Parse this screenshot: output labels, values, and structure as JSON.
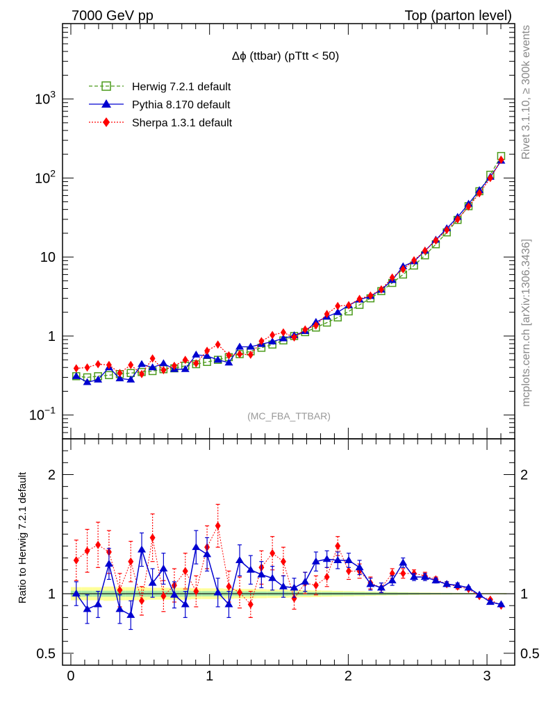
{
  "header": {
    "left": "7000 GeV pp",
    "right": "Top (parton level)"
  },
  "side": {
    "rivet": "Rivet 3.1.10, ≥ 300k events",
    "mcplots": "mcplots.cern.ch [arXiv:1306.3436]"
  },
  "chart_data": [
    {
      "type": "line",
      "panel": "main",
      "title": "Δϕ (ttbar) (pTtt < 50)",
      "watermark": "(MC_FBA_TTBAR)",
      "xlim": [
        -0.06,
        3.2
      ],
      "ylim": [
        0.05,
        9000
      ],
      "yscale": "log",
      "yticks": [
        {
          "v": 0.1,
          "base": "10",
          "exp": "−1"
        },
        {
          "v": 1,
          "label": "1"
        },
        {
          "v": 10,
          "label": "10"
        },
        {
          "v": 100,
          "base": "10",
          "exp": "2"
        },
        {
          "v": 1000,
          "base": "10",
          "exp": "3"
        }
      ],
      "legend_position": "top-left",
      "series": [
        {
          "name": "Herwig 7.2.1 default",
          "color": "#4a9a1a",
          "line": "dashed",
          "marker": "open-square",
          "x": [
            0.039,
            0.118,
            0.196,
            0.275,
            0.353,
            0.432,
            0.511,
            0.589,
            0.668,
            0.746,
            0.825,
            0.903,
            0.982,
            1.06,
            1.139,
            1.217,
            1.296,
            1.374,
            1.453,
            1.532,
            1.61,
            1.689,
            1.767,
            1.846,
            1.924,
            2.003,
            2.081,
            2.16,
            2.238,
            2.317,
            2.395,
            2.474,
            2.553,
            2.631,
            2.71,
            2.788,
            2.867,
            2.945,
            3.024,
            3.102
          ],
          "y": [
            0.31,
            0.3,
            0.31,
            0.32,
            0.33,
            0.34,
            0.35,
            0.36,
            0.38,
            0.39,
            0.42,
            0.44,
            0.47,
            0.5,
            0.54,
            0.59,
            0.64,
            0.71,
            0.78,
            0.88,
            1.0,
            1.12,
            1.28,
            1.48,
            1.72,
            2.05,
            2.48,
            3.0,
            3.7,
            4.7,
            6.0,
            7.8,
            10.5,
            14.5,
            20.5,
            29.5,
            44,
            68,
            110,
            190
          ]
        },
        {
          "name": "Pythia 8.170 default",
          "color": "#0000d0",
          "line": "solid",
          "marker": "filled-triangle",
          "x": [
            0.039,
            0.118,
            0.196,
            0.275,
            0.353,
            0.432,
            0.511,
            0.589,
            0.668,
            0.746,
            0.825,
            0.903,
            0.982,
            1.06,
            1.139,
            1.217,
            1.296,
            1.374,
            1.453,
            1.532,
            1.61,
            1.689,
            1.767,
            1.846,
            1.924,
            2.003,
            2.081,
            2.16,
            2.238,
            2.317,
            2.395,
            2.474,
            2.553,
            2.631,
            2.71,
            2.788,
            2.867,
            2.945,
            3.024,
            3.102
          ],
          "y": [
            0.31,
            0.26,
            0.28,
            0.4,
            0.29,
            0.28,
            0.44,
            0.4,
            0.45,
            0.38,
            0.38,
            0.58,
            0.56,
            0.5,
            0.46,
            0.73,
            0.73,
            0.79,
            0.85,
            0.93,
            1.02,
            1.15,
            1.5,
            1.75,
            2.0,
            2.45,
            2.88,
            3.2,
            3.85,
            5.1,
            7.6,
            8.8,
            12.0,
            16.5,
            23.0,
            32.0,
            47,
            70,
            103,
            165
          ]
        },
        {
          "name": "Sherpa 1.3.1 default",
          "color": "#ff0000",
          "line": "dotted",
          "marker": "filled-diamond",
          "x": [
            0.039,
            0.118,
            0.196,
            0.275,
            0.353,
            0.432,
            0.511,
            0.589,
            0.668,
            0.746,
            0.825,
            0.903,
            0.982,
            1.06,
            1.139,
            1.217,
            1.296,
            1.374,
            1.453,
            1.532,
            1.61,
            1.689,
            1.767,
            1.846,
            1.924,
            2.003,
            2.081,
            2.16,
            2.238,
            2.317,
            2.395,
            2.474,
            2.553,
            2.631,
            2.71,
            2.788,
            2.867,
            2.945,
            3.024,
            3.102
          ],
          "y": [
            0.39,
            0.4,
            0.44,
            0.43,
            0.34,
            0.43,
            0.33,
            0.52,
            0.37,
            0.42,
            0.5,
            0.45,
            0.65,
            0.78,
            0.57,
            0.59,
            0.58,
            0.86,
            1.03,
            1.11,
            0.96,
            1.21,
            1.36,
            1.9,
            2.4,
            2.45,
            2.95,
            3.25,
            3.9,
            5.5,
            7.0,
            9.1,
            12.0,
            16.2,
            22.0,
            30.0,
            43.5,
            64.0,
            100,
            170
          ]
        }
      ]
    },
    {
      "type": "line",
      "panel": "ratio",
      "ylabel": "Ratio to Herwig 7.2.1 default",
      "xlim": [
        -0.06,
        3.2
      ],
      "ylim": [
        0.4,
        2.3
      ],
      "xticks": [
        0,
        1,
        2,
        3
      ],
      "yticks": [
        0.5,
        1,
        2
      ],
      "reference": 1.0,
      "band": {
        "green_halfwidth": [
          0.025,
          0.025,
          0.025,
          0.025,
          0.025,
          0.025,
          0.025,
          0.025,
          0.025,
          0.025,
          0.025,
          0.022,
          0.022,
          0.022,
          0.02,
          0.02,
          0.02,
          0.018,
          0.018,
          0.018,
          0.016,
          0.016,
          0.015,
          0.015,
          0.014,
          0.014,
          0.013,
          0.012,
          0.011,
          0.01,
          0.009,
          0.008,
          0.007,
          0.006,
          0.006,
          0.005,
          0.005,
          0.004,
          0.004,
          0.004
        ],
        "yellow_halfwidth": [
          0.055,
          0.055,
          0.055,
          0.06,
          0.055,
          0.055,
          0.055,
          0.05,
          0.05,
          0.05,
          0.05,
          0.045,
          0.045,
          0.045,
          0.042,
          0.04,
          0.04,
          0.038,
          0.036,
          0.034,
          0.032,
          0.03,
          0.028,
          0.026,
          0.024,
          0.022,
          0.02,
          0.018,
          0.016,
          0.014,
          0.012,
          0.011,
          0.01,
          0.009,
          0.008,
          0.007,
          0.006,
          0.005,
          0.005,
          0.005
        ]
      },
      "series": [
        {
          "name": "Pythia 8.170 default",
          "color": "#0000d0",
          "marker": "filled-triangle",
          "x": [
            0.039,
            0.118,
            0.196,
            0.275,
            0.353,
            0.432,
            0.511,
            0.589,
            0.668,
            0.746,
            0.825,
            0.903,
            0.982,
            1.06,
            1.139,
            1.217,
            1.296,
            1.374,
            1.453,
            1.532,
            1.61,
            1.689,
            1.767,
            1.846,
            1.924,
            2.003,
            2.081,
            2.16,
            2.238,
            2.317,
            2.395,
            2.474,
            2.553,
            2.631,
            2.71,
            2.788,
            2.867,
            2.945,
            3.024,
            3.102
          ],
          "y": [
            1.0,
            0.87,
            0.91,
            1.25,
            0.87,
            0.82,
            1.37,
            1.09,
            1.21,
            0.99,
            0.91,
            1.39,
            1.33,
            1.01,
            0.91,
            1.28,
            1.2,
            1.16,
            1.13,
            1.06,
            1.05,
            1.1,
            1.27,
            1.29,
            1.28,
            1.28,
            1.22,
            1.08,
            1.05,
            1.11,
            1.26,
            1.14,
            1.14,
            1.11,
            1.08,
            1.07,
            1.05,
            0.99,
            0.93,
            0.91
          ],
          "err": [
            0.1,
            0.12,
            0.11,
            0.13,
            0.12,
            0.12,
            0.14,
            0.12,
            0.13,
            0.11,
            0.11,
            0.14,
            0.14,
            0.12,
            0.11,
            0.13,
            0.12,
            0.11,
            0.1,
            0.09,
            0.08,
            0.08,
            0.08,
            0.07,
            0.07,
            0.06,
            0.06,
            0.05,
            0.04,
            0.04,
            0.04,
            0.03,
            0.03,
            0.02,
            0.02,
            0.02,
            0.01,
            0.01,
            0.01,
            0.01
          ]
        },
        {
          "name": "Sherpa 1.3.1 default",
          "color": "#ff0000",
          "marker": "filled-diamond",
          "x": [
            0.039,
            0.118,
            0.196,
            0.275,
            0.353,
            0.432,
            0.511,
            0.589,
            0.668,
            0.746,
            0.825,
            0.903,
            0.982,
            1.06,
            1.139,
            1.217,
            1.296,
            1.374,
            1.453,
            1.532,
            1.61,
            1.689,
            1.767,
            1.846,
            1.924,
            2.003,
            2.081,
            2.16,
            2.238,
            2.317,
            2.395,
            2.474,
            2.553,
            2.631,
            2.71,
            2.788,
            2.867,
            2.945,
            3.024,
            3.102
          ],
          "y": [
            1.28,
            1.36,
            1.41,
            1.35,
            1.03,
            1.27,
            0.94,
            1.47,
            0.98,
            1.07,
            1.19,
            1.02,
            1.39,
            1.57,
            1.06,
            1.01,
            0.91,
            1.22,
            1.34,
            1.27,
            0.96,
            1.09,
            1.07,
            1.14,
            1.4,
            1.19,
            1.19,
            1.09,
            1.05,
            1.17,
            1.17,
            1.17,
            1.15,
            1.12,
            1.08,
            1.06,
            1.04,
            0.98,
            0.95,
            0.9
          ],
          "err": [
            0.17,
            0.18,
            0.19,
            0.18,
            0.14,
            0.17,
            0.12,
            0.2,
            0.13,
            0.14,
            0.15,
            0.13,
            0.18,
            0.18,
            0.13,
            0.13,
            0.11,
            0.14,
            0.14,
            0.12,
            0.09,
            0.09,
            0.08,
            0.08,
            0.08,
            0.07,
            0.06,
            0.05,
            0.04,
            0.04,
            0.04,
            0.03,
            0.03,
            0.02,
            0.02,
            0.02,
            0.01,
            0.01,
            0.01,
            0.01
          ]
        }
      ]
    }
  ]
}
